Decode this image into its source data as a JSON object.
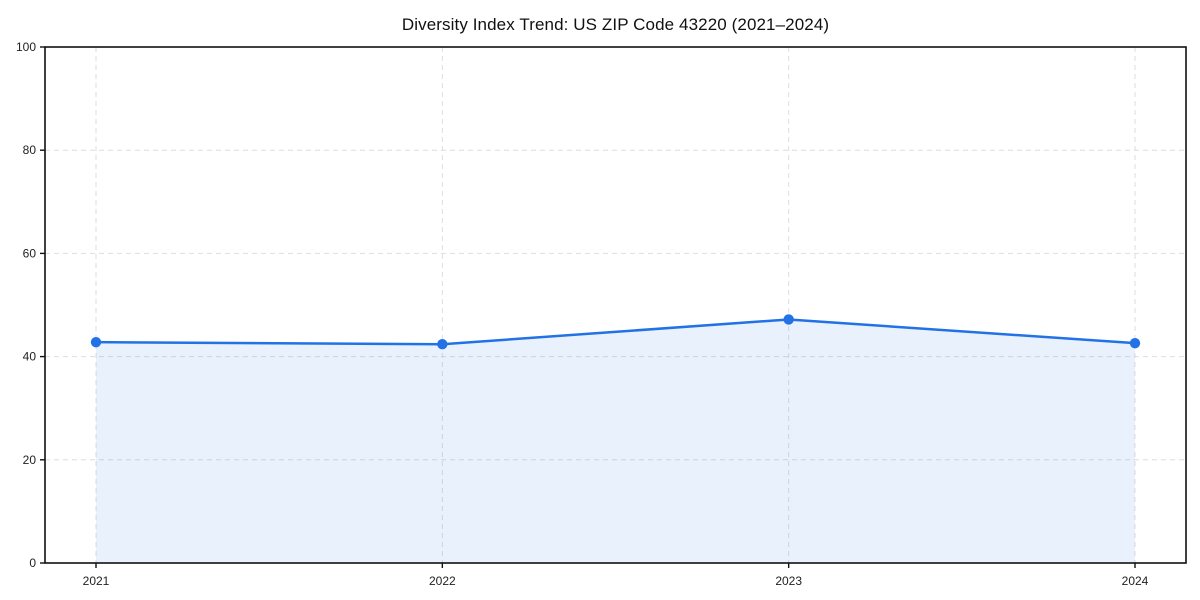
{
  "chart_data": {
    "type": "area",
    "title": "Diversity Index Trend: US ZIP Code 43220 (2021–2024)",
    "series_name": "Diversity Index",
    "categories": [
      "2021",
      "2022",
      "2023",
      "2024"
    ],
    "values": [
      42.8,
      42.4,
      47.2,
      42.6
    ],
    "xlabel": "",
    "ylabel": "",
    "ylim": [
      0,
      100
    ],
    "yticks": [
      0,
      20,
      40,
      60,
      80,
      100
    ],
    "grid": true,
    "grid_style": "dashed",
    "legend_position": "none",
    "marker": "circle",
    "colors": {
      "line": "#2272e5",
      "marker": "#2272e5",
      "fill": "rgba(34,114,229,0.10)",
      "grid": "#dedede",
      "spine": "#111111",
      "tick_label": "#222222",
      "title": "#111111",
      "background": "#ffffff"
    }
  }
}
